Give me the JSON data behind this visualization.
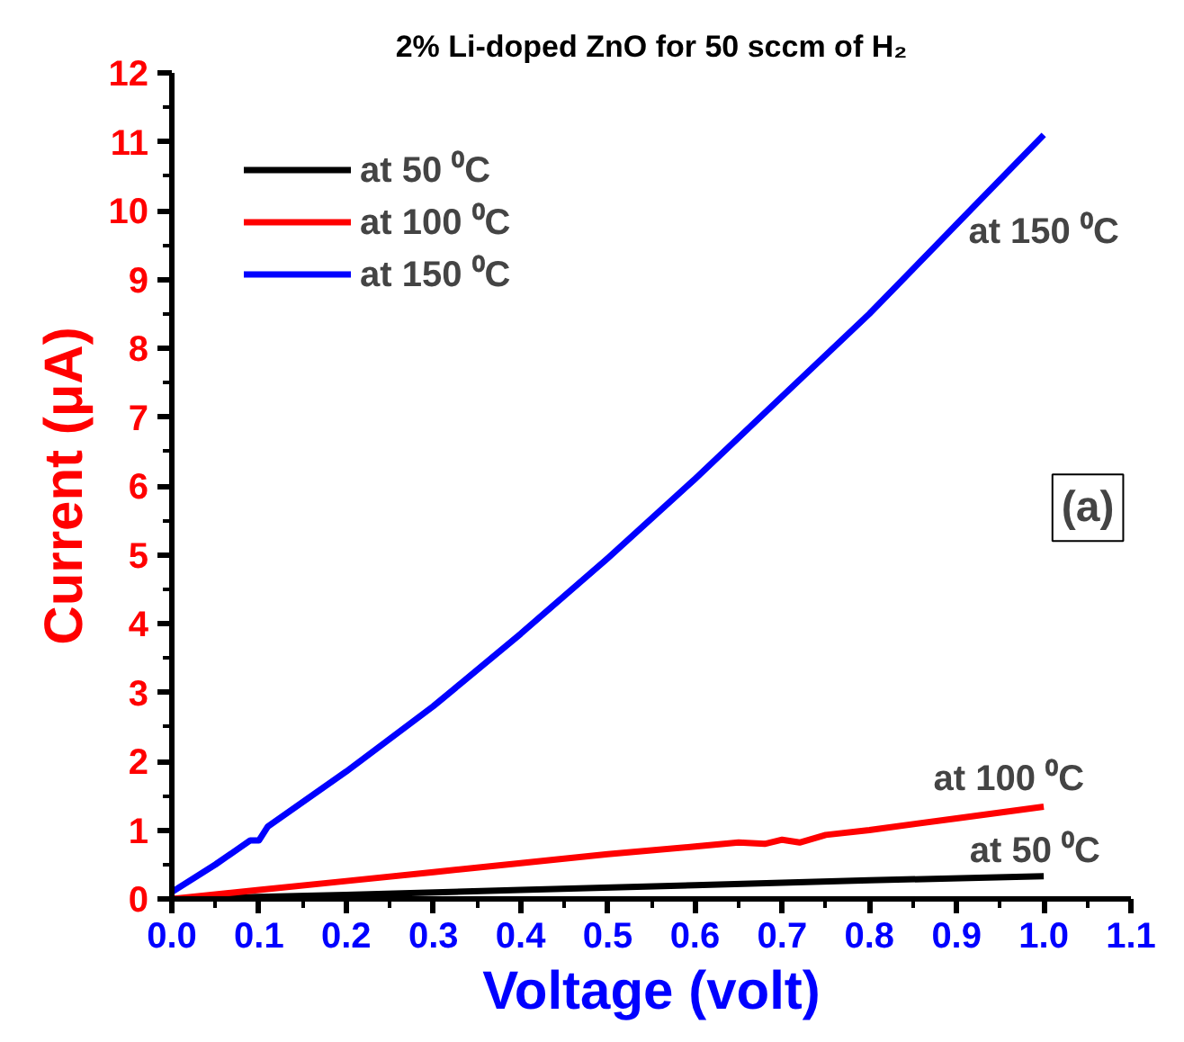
{
  "chart_data": {
    "type": "line",
    "title": "2% Li-doped ZnO for 50 sccm of H₂",
    "xlabel": "Voltage (volt)",
    "ylabel": "Current (μA)",
    "xlim": [
      0,
      1.1
    ],
    "ylim": [
      0,
      12
    ],
    "xticks": [
      {
        "value": 0,
        "label": "0.0"
      },
      0.1,
      0.2,
      0.3,
      0.4,
      0.5,
      0.6,
      0.7,
      0.8,
      0.9,
      {
        "value": 1,
        "label": "1.0"
      },
      1.1
    ],
    "yticks": [
      0,
      1,
      2,
      3,
      4,
      5,
      6,
      7,
      8,
      9,
      10,
      11,
      12
    ],
    "grid": false,
    "legend": "top left",
    "marker": "none",
    "line_style": "solid",
    "series": [
      {
        "name": "at 50 ⁰C",
        "color": "#000000",
        "x": [
          0,
          0.2,
          0.4,
          0.6,
          0.8,
          1.0
        ],
        "values": [
          0,
          0.06,
          0.13,
          0.2,
          0.27,
          0.33
        ]
      },
      {
        "name": "at 100 ⁰C",
        "color": "#ff0000",
        "x": [
          0,
          0.1,
          0.2,
          0.3,
          0.4,
          0.5,
          0.6,
          0.65,
          0.68,
          0.7,
          0.72,
          0.75,
          0.8,
          0.9,
          1.0
        ],
        "values": [
          0,
          0.13,
          0.26,
          0.39,
          0.52,
          0.65,
          0.76,
          0.82,
          0.8,
          0.86,
          0.82,
          0.93,
          1.0,
          1.17,
          1.34
        ]
      },
      {
        "name": "at 150 ⁰C",
        "color": "#0000ff",
        "x": [
          0,
          0.05,
          0.09,
          0.1,
          0.11,
          0.2,
          0.3,
          0.4,
          0.5,
          0.6,
          0.7,
          0.8,
          0.9,
          1.0
        ],
        "values": [
          0.1,
          0.5,
          0.85,
          0.85,
          1.05,
          1.85,
          2.8,
          3.85,
          4.95,
          6.1,
          7.3,
          8.5,
          9.8,
          11.1
        ]
      }
    ],
    "annotations": [
      "at 150 ⁰C",
      "at 100 ⁰C",
      "at 50 ⁰C",
      "(a)"
    ]
  }
}
